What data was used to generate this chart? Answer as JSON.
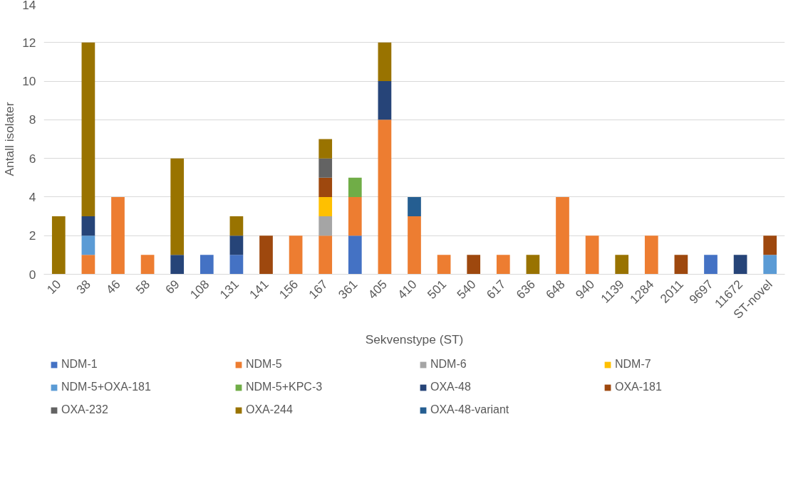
{
  "chart_data": {
    "type": "bar",
    "stacked": true,
    "xlabel": "Sekvenstype (ST)",
    "ylabel": "Antall isolater",
    "categories": [
      "10",
      "38",
      "46",
      "58",
      "69",
      "108",
      "131",
      "141",
      "156",
      "167",
      "361",
      "405",
      "410",
      "501",
      "540",
      "617",
      "636",
      "648",
      "940",
      "1139",
      "1284",
      "2011",
      "9697",
      "11672",
      "ST-novel"
    ],
    "ylim": [
      0,
      14
    ],
    "yticks": [
      0,
      2,
      4,
      6,
      8,
      10,
      12,
      14
    ],
    "grid": "y",
    "legend": "bottom",
    "series": [
      {
        "name": "NDM-1",
        "color": "#4472c4",
        "values": [
          null,
          null,
          null,
          null,
          null,
          1,
          1,
          null,
          null,
          null,
          2,
          null,
          null,
          null,
          null,
          null,
          null,
          null,
          null,
          null,
          null,
          null,
          1,
          null,
          null
        ]
      },
      {
        "name": "NDM-5",
        "color": "#ed7d31",
        "values": [
          null,
          1,
          4,
          1,
          null,
          null,
          null,
          null,
          2,
          2,
          2,
          8,
          3,
          1,
          null,
          1,
          null,
          4,
          2,
          null,
          2,
          null,
          null,
          null,
          null
        ]
      },
      {
        "name": "NDM-6",
        "color": "#a5a5a5",
        "values": [
          null,
          null,
          null,
          null,
          null,
          null,
          null,
          null,
          null,
          1,
          null,
          null,
          null,
          null,
          null,
          null,
          null,
          null,
          null,
          null,
          null,
          null,
          null,
          null,
          null
        ]
      },
      {
        "name": "NDM-7",
        "color": "#ffc000",
        "values": [
          null,
          null,
          null,
          null,
          null,
          null,
          null,
          null,
          null,
          1,
          null,
          null,
          null,
          null,
          null,
          null,
          null,
          null,
          null,
          null,
          null,
          null,
          null,
          null,
          null
        ]
      },
      {
        "name": "NDM-5+OXA-181",
        "color": "#5b9bd5",
        "values": [
          null,
          1,
          null,
          null,
          null,
          null,
          null,
          null,
          null,
          null,
          null,
          null,
          null,
          null,
          null,
          null,
          null,
          null,
          null,
          null,
          null,
          null,
          null,
          null,
          1
        ]
      },
      {
        "name": "NDM-5+KPC-3",
        "color": "#70ad47",
        "values": [
          null,
          null,
          null,
          null,
          null,
          null,
          null,
          null,
          null,
          null,
          1,
          null,
          null,
          null,
          null,
          null,
          null,
          null,
          null,
          null,
          null,
          null,
          null,
          null,
          null
        ]
      },
      {
        "name": "OXA-48",
        "color": "#264478",
        "values": [
          null,
          1,
          null,
          null,
          1,
          null,
          1,
          null,
          null,
          null,
          null,
          2,
          null,
          null,
          null,
          null,
          null,
          null,
          null,
          null,
          null,
          null,
          null,
          1,
          null
        ]
      },
      {
        "name": "OXA-181",
        "color": "#9e480e",
        "values": [
          null,
          null,
          null,
          null,
          null,
          null,
          null,
          2,
          null,
          1,
          null,
          null,
          null,
          null,
          1,
          null,
          null,
          null,
          null,
          null,
          null,
          1,
          null,
          null,
          1
        ]
      },
      {
        "name": "OXA-232",
        "color": "#636363",
        "values": [
          null,
          null,
          null,
          null,
          null,
          null,
          null,
          null,
          null,
          1,
          null,
          null,
          null,
          null,
          null,
          null,
          null,
          null,
          null,
          null,
          null,
          null,
          null,
          null,
          null
        ]
      },
      {
        "name": "OXA-244",
        "color": "#997300",
        "values": [
          3,
          9,
          null,
          null,
          5,
          null,
          1,
          null,
          null,
          1,
          null,
          2,
          null,
          null,
          null,
          null,
          1,
          null,
          null,
          1,
          null,
          null,
          null,
          null,
          null
        ]
      },
      {
        "name": "OXA-48-variant",
        "color": "#255e91",
        "values": [
          null,
          null,
          null,
          null,
          null,
          null,
          null,
          null,
          null,
          null,
          null,
          null,
          1,
          null,
          null,
          null,
          null,
          null,
          null,
          null,
          null,
          null,
          null,
          null,
          null
        ]
      }
    ]
  }
}
